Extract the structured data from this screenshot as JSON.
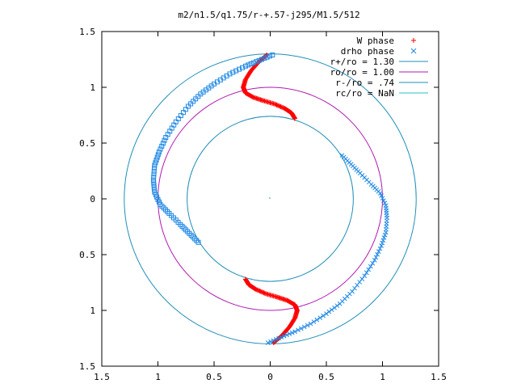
{
  "chart_data": {
    "type": "scatter",
    "title": "m2/n1.5/q1.75/r-+.57-j295/M1.5/512",
    "xlabel": "",
    "ylabel": "",
    "xlim": [
      -1.5,
      1.5
    ],
    "ylim": [
      -1.5,
      1.5
    ],
    "x_ticks": [
      -1.5,
      -1,
      -0.5,
      0,
      0.5,
      1,
      1.5
    ],
    "y_ticks": [
      -1.5,
      -1,
      -0.5,
      0,
      0.5,
      1,
      1.5
    ],
    "x_tick_labels": [
      "1.5",
      "1",
      "0.5",
      "0",
      "0.5",
      "1",
      "1.5"
    ],
    "y_tick_labels": [
      "1.5",
      "1",
      "0.5",
      "0",
      "0.5",
      "1",
      "1.5"
    ],
    "legend_position": "top-right",
    "circles": [
      {
        "name": "r+/ro = 1.30",
        "radius": 1.3,
        "color": "#1f8fb8"
      },
      {
        "name": "ro/ro = 1.00",
        "radius": 1.0,
        "color": "#b01ab0"
      },
      {
        "name": "r-/ro = .74",
        "radius": 0.74,
        "color": "#1f8fb8"
      },
      {
        "name": "rc/ro = NaN",
        "radius": null,
        "color": "#29c2c2"
      }
    ],
    "series": [
      {
        "name": "W phase",
        "marker": "plus",
        "color": "#ff0000",
        "arms": [
          [
            [
              -0.03,
              1.29
            ],
            [
              -0.1,
              1.23
            ],
            [
              -0.17,
              1.15
            ],
            [
              -0.22,
              1.07
            ],
            [
              -0.24,
              1.0
            ],
            [
              -0.22,
              0.95
            ],
            [
              -0.15,
              0.91
            ],
            [
              -0.06,
              0.88
            ],
            [
              0.04,
              0.85
            ],
            [
              0.13,
              0.81
            ],
            [
              0.19,
              0.77
            ],
            [
              0.22,
              0.72
            ]
          ],
          [
            [
              0.03,
              -1.29
            ],
            [
              0.1,
              -1.23
            ],
            [
              0.17,
              -1.15
            ],
            [
              0.22,
              -1.07
            ],
            [
              0.24,
              -1.0
            ],
            [
              0.22,
              -0.95
            ],
            [
              0.15,
              -0.91
            ],
            [
              0.06,
              -0.88
            ],
            [
              -0.04,
              -0.85
            ],
            [
              -0.13,
              -0.81
            ],
            [
              -0.19,
              -0.77
            ],
            [
              -0.22,
              -0.72
            ]
          ]
        ]
      },
      {
        "name": "drho phase",
        "marker": "x",
        "color": "#1e88e5",
        "arms": [
          [
            [
              0.02,
              1.29
            ],
            [
              -0.1,
              1.24
            ],
            [
              -0.22,
              1.19
            ],
            [
              -0.36,
              1.12
            ],
            [
              -0.5,
              1.03
            ],
            [
              -0.62,
              0.94
            ],
            [
              -0.73,
              0.83
            ],
            [
              -0.84,
              0.69
            ],
            [
              -0.93,
              0.55
            ],
            [
              -0.99,
              0.42
            ],
            [
              -1.03,
              0.3
            ],
            [
              -1.04,
              0.17
            ],
            [
              -1.03,
              0.06
            ],
            [
              -0.98,
              -0.05
            ],
            [
              -0.9,
              -0.13
            ],
            [
              -0.8,
              -0.23
            ],
            [
              -0.72,
              -0.31
            ],
            [
              -0.64,
              -0.39
            ]
          ],
          [
            [
              -0.02,
              -1.29
            ],
            [
              0.1,
              -1.24
            ],
            [
              0.22,
              -1.19
            ],
            [
              0.36,
              -1.12
            ],
            [
              0.5,
              -1.03
            ],
            [
              0.62,
              -0.94
            ],
            [
              0.73,
              -0.83
            ],
            [
              0.84,
              -0.69
            ],
            [
              0.93,
              -0.55
            ],
            [
              0.99,
              -0.42
            ],
            [
              1.03,
              -0.3
            ],
            [
              1.04,
              -0.17
            ],
            [
              1.03,
              -0.06
            ],
            [
              0.98,
              0.05
            ],
            [
              0.9,
              0.13
            ],
            [
              0.8,
              0.23
            ],
            [
              0.72,
              0.31
            ],
            [
              0.64,
              0.39
            ]
          ]
        ]
      }
    ]
  }
}
